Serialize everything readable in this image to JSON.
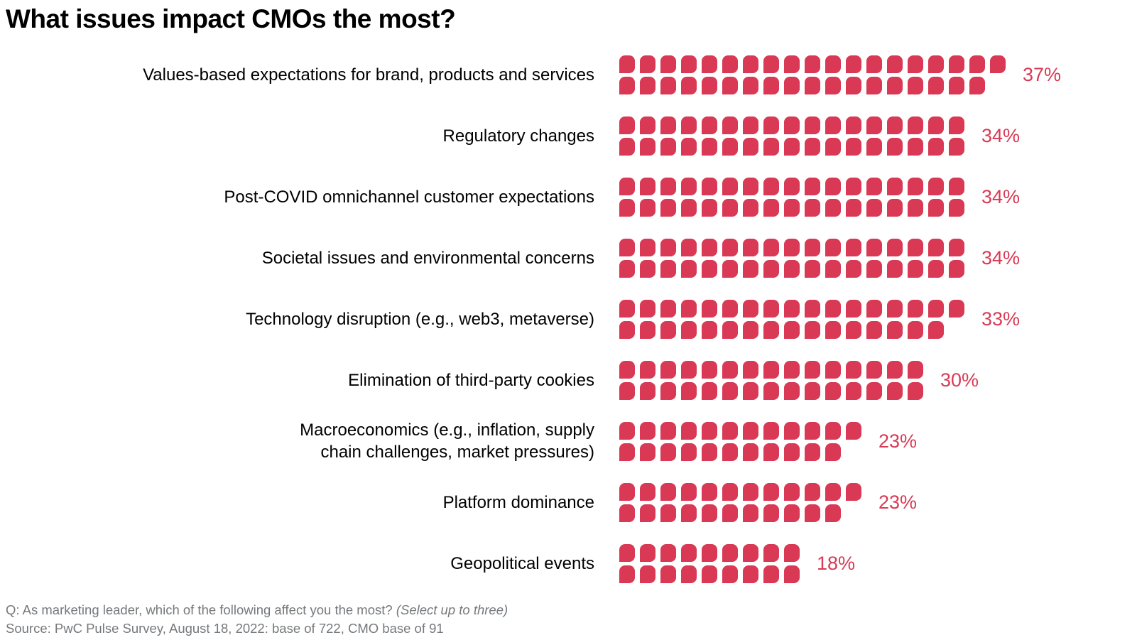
{
  "title": "What issues impact CMOs the most?",
  "colors": {
    "background": "#ffffff",
    "title": "#000000",
    "category_label": "#000000",
    "block": "#D93954",
    "value_label": "#D93954",
    "footer": "#75787B"
  },
  "footer": {
    "question": "Q: As marketing leader, which of the following affect you the most?",
    "question_note": "(Select up to three)",
    "source": "Source: PwC Pulse Survey, August 18, 2022: base of 722, CMO base of 91"
  },
  "chart_data": {
    "type": "bar",
    "subtype": "pictogram-waffle",
    "title": "What issues impact CMOs the most?",
    "unit": "1 block = 1%, split into two rows per category (top row = ceil(value/2))",
    "legend_position": "none",
    "grid": false,
    "xlim": [
      0,
      40
    ],
    "categories": [
      "Values-based expectations for brand, products and services",
      "Regulatory changes",
      "Post-COVID omnichannel customer expectations",
      "Societal issues and environmental concerns",
      "Technology disruption (e.g., web3, metaverse)",
      "Elimination of third-party cookies",
      "Macroeconomics (e.g., inflation, supply chain challenges, market pressures)",
      "Platform dominance",
      "Geopolitical events"
    ],
    "values": [
      37,
      34,
      34,
      34,
      33,
      30,
      23,
      23,
      18
    ],
    "value_labels": [
      "37%",
      "34%",
      "34%",
      "34%",
      "33%",
      "30%",
      "23%",
      "23%",
      "18%"
    ],
    "rows": [
      {
        "label": "Values-based expectations for brand, products and services",
        "label_lines": [
          "Values-based expectations for brand, products and services"
        ],
        "value": 37,
        "display": "37%"
      },
      {
        "label": "Regulatory changes",
        "label_lines": [
          "Regulatory changes"
        ],
        "value": 34,
        "display": "34%"
      },
      {
        "label": "Post-COVID omnichannel customer expectations",
        "label_lines": [
          "Post-COVID omnichannel customer expectations"
        ],
        "value": 34,
        "display": "34%"
      },
      {
        "label": "Societal issues and environmental concerns",
        "label_lines": [
          "Societal issues and environmental concerns"
        ],
        "value": 34,
        "display": "34%"
      },
      {
        "label": "Technology disruption (e.g., web3, metaverse)",
        "label_lines": [
          "Technology disruption (e.g., web3, metaverse)"
        ],
        "value": 33,
        "display": "33%"
      },
      {
        "label": "Elimination of third-party cookies",
        "label_lines": [
          "Elimination of third-party cookies"
        ],
        "value": 30,
        "display": "30%"
      },
      {
        "label": "Macroeconomics (e.g., inflation, supply chain challenges, market pressures)",
        "label_lines": [
          "Macroeconomics (e.g., inflation, supply",
          "chain challenges, market pressures)"
        ],
        "value": 23,
        "display": "23%"
      },
      {
        "label": "Platform dominance",
        "label_lines": [
          "Platform dominance"
        ],
        "value": 23,
        "display": "23%"
      },
      {
        "label": "Geopolitical events",
        "label_lines": [
          "Geopolitical events"
        ],
        "value": 18,
        "display": "18%"
      }
    ]
  }
}
